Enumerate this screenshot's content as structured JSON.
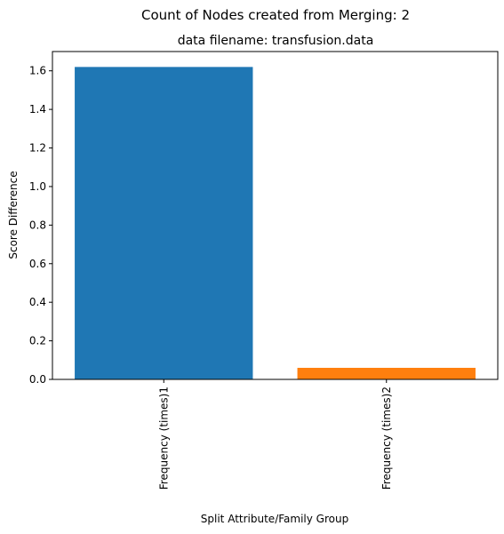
{
  "suptitle": "Count of Nodes created from Merging: 2",
  "chart_data": {
    "type": "bar",
    "title": "data filename: transfusion.data",
    "xlabel": "Split Attribute/Family Group",
    "ylabel": "Score Difference",
    "categories": [
      "Frequency (times)1",
      "Frequency (times)2"
    ],
    "values": [
      1.62,
      0.06
    ],
    "colors": [
      "#1f77b4",
      "#ff7f0e"
    ],
    "ylim": [
      0,
      1.7
    ],
    "yticks": [
      0.0,
      0.2,
      0.4,
      0.6,
      0.8,
      1.0,
      1.2,
      1.4,
      1.6
    ],
    "ytick_labels": [
      "0.0",
      "0.2",
      "0.4",
      "0.6",
      "0.8",
      "1.0",
      "1.2",
      "1.4",
      "1.6"
    ],
    "grid": false,
    "legend": "none"
  }
}
